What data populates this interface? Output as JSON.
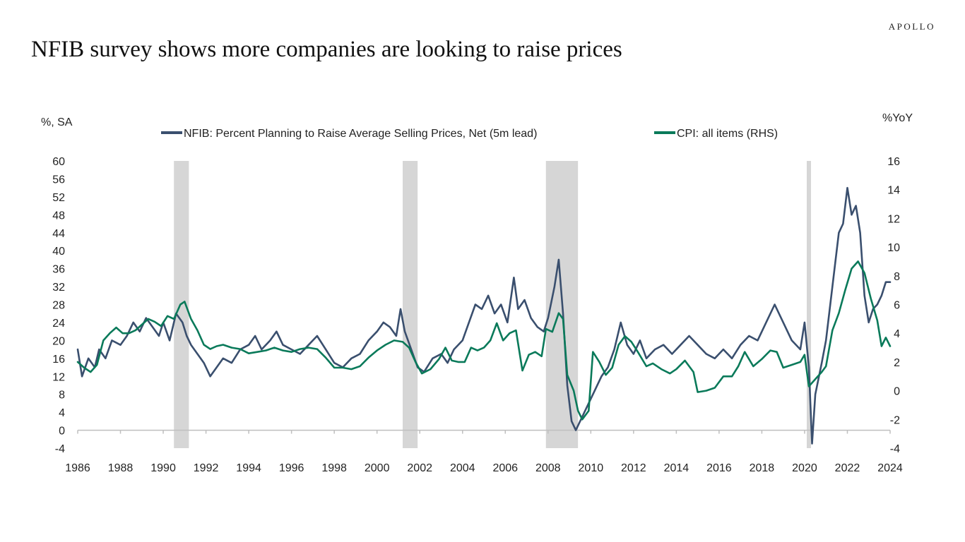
{
  "header": {
    "brand": "APOLLO",
    "title": "NFIB survey shows more companies are looking to raise prices"
  },
  "colors": {
    "nfib": "#3a4f6e",
    "cpi": "#0a7a5a",
    "recession": "#d6d6d6",
    "axis": "#bfbfbf"
  },
  "chart_data": {
    "type": "line",
    "title": "NFIB survey shows more companies are looking to raise prices",
    "y_left_label": "%, SA",
    "y_right_label": "%YoY",
    "ylim_left": [
      -4,
      60
    ],
    "ylim_right": [
      -4,
      16
    ],
    "xlim": [
      1986,
      2024
    ],
    "x_ticks": [
      "1986",
      "1988",
      "1990",
      "1992",
      "1994",
      "1996",
      "1998",
      "2000",
      "2002",
      "2004",
      "2006",
      "2008",
      "2010",
      "2012",
      "2014",
      "2016",
      "2018",
      "2020",
      "2022",
      "2024"
    ],
    "y_left_ticks": [
      "60",
      "56",
      "52",
      "48",
      "44",
      "40",
      "36",
      "32",
      "28",
      "24",
      "20",
      "16",
      "12",
      "8",
      "4",
      "0",
      "-4"
    ],
    "y_right_ticks": [
      "16",
      "14",
      "12",
      "10",
      "8",
      "6",
      "4",
      "2",
      "0",
      "-2",
      "-4"
    ],
    "legend": "top",
    "recessions": [
      [
        1990.5,
        1991.2
      ],
      [
        2001.2,
        2001.9
      ],
      [
        2007.9,
        2009.4
      ],
      [
        2020.1,
        2020.3
      ]
    ],
    "series": [
      {
        "name": "NFIB: Percent Planning to Raise Average Selling Prices, Net (5m lead)",
        "axis": "left",
        "points": [
          [
            1986.0,
            18
          ],
          [
            1986.2,
            12
          ],
          [
            1986.5,
            16
          ],
          [
            1986.8,
            14
          ],
          [
            1987.0,
            18
          ],
          [
            1987.3,
            16
          ],
          [
            1987.6,
            20
          ],
          [
            1988.0,
            19
          ],
          [
            1988.3,
            21
          ],
          [
            1988.6,
            24
          ],
          [
            1988.9,
            22
          ],
          [
            1989.2,
            25
          ],
          [
            1989.5,
            23
          ],
          [
            1989.8,
            21
          ],
          [
            1990.0,
            24
          ],
          [
            1990.3,
            20
          ],
          [
            1990.6,
            26
          ],
          [
            1990.9,
            24
          ],
          [
            1991.1,
            21
          ],
          [
            1991.3,
            19
          ],
          [
            1991.6,
            17
          ],
          [
            1991.9,
            15
          ],
          [
            1992.2,
            12
          ],
          [
            1992.5,
            14
          ],
          [
            1992.8,
            16
          ],
          [
            1993.2,
            15
          ],
          [
            1993.6,
            18
          ],
          [
            1994.0,
            19
          ],
          [
            1994.3,
            21
          ],
          [
            1994.6,
            18
          ],
          [
            1995.0,
            20
          ],
          [
            1995.3,
            22
          ],
          [
            1995.6,
            19
          ],
          [
            1996.0,
            18
          ],
          [
            1996.4,
            17
          ],
          [
            1996.8,
            19
          ],
          [
            1997.2,
            21
          ],
          [
            1997.6,
            18
          ],
          [
            1998.0,
            15
          ],
          [
            1998.4,
            14
          ],
          [
            1998.8,
            16
          ],
          [
            1999.2,
            17
          ],
          [
            1999.6,
            20
          ],
          [
            2000.0,
            22
          ],
          [
            2000.3,
            24
          ],
          [
            2000.6,
            23
          ],
          [
            2000.9,
            21
          ],
          [
            2001.1,
            27
          ],
          [
            2001.3,
            22
          ],
          [
            2001.6,
            18
          ],
          [
            2001.9,
            14
          ],
          [
            2002.2,
            13
          ],
          [
            2002.6,
            16
          ],
          [
            2003.0,
            17
          ],
          [
            2003.3,
            15
          ],
          [
            2003.6,
            18
          ],
          [
            2004.0,
            20
          ],
          [
            2004.3,
            24
          ],
          [
            2004.6,
            28
          ],
          [
            2004.9,
            27
          ],
          [
            2005.2,
            30
          ],
          [
            2005.5,
            26
          ],
          [
            2005.8,
            28
          ],
          [
            2006.1,
            24
          ],
          [
            2006.4,
            34
          ],
          [
            2006.6,
            27
          ],
          [
            2006.9,
            29
          ],
          [
            2007.2,
            25
          ],
          [
            2007.5,
            23
          ],
          [
            2007.8,
            22
          ],
          [
            2008.0,
            25
          ],
          [
            2008.3,
            32
          ],
          [
            2008.5,
            38
          ],
          [
            2008.7,
            26
          ],
          [
            2008.9,
            10
          ],
          [
            2009.1,
            2
          ],
          [
            2009.3,
            0
          ],
          [
            2009.6,
            3
          ],
          [
            2009.9,
            6
          ],
          [
            2010.2,
            9
          ],
          [
            2010.5,
            12
          ],
          [
            2010.8,
            14
          ],
          [
            2011.1,
            18
          ],
          [
            2011.4,
            24
          ],
          [
            2011.7,
            19
          ],
          [
            2012.0,
            17
          ],
          [
            2012.3,
            20
          ],
          [
            2012.6,
            16
          ],
          [
            2013.0,
            18
          ],
          [
            2013.4,
            19
          ],
          [
            2013.8,
            17
          ],
          [
            2014.2,
            19
          ],
          [
            2014.6,
            21
          ],
          [
            2015.0,
            19
          ],
          [
            2015.4,
            17
          ],
          [
            2015.8,
            16
          ],
          [
            2016.2,
            18
          ],
          [
            2016.6,
            16
          ],
          [
            2017.0,
            19
          ],
          [
            2017.4,
            21
          ],
          [
            2017.8,
            20
          ],
          [
            2018.2,
            24
          ],
          [
            2018.6,
            28
          ],
          [
            2019.0,
            24
          ],
          [
            2019.4,
            20
          ],
          [
            2019.8,
            18
          ],
          [
            2020.0,
            24
          ],
          [
            2020.2,
            14
          ],
          [
            2020.35,
            -3
          ],
          [
            2020.5,
            8
          ],
          [
            2020.8,
            15
          ],
          [
            2021.0,
            20
          ],
          [
            2021.3,
            32
          ],
          [
            2021.6,
            44
          ],
          [
            2021.8,
            46
          ],
          [
            2022.0,
            54
          ],
          [
            2022.2,
            48
          ],
          [
            2022.4,
            50
          ],
          [
            2022.6,
            44
          ],
          [
            2022.8,
            30
          ],
          [
            2023.0,
            24
          ],
          [
            2023.2,
            27
          ],
          [
            2023.4,
            28
          ],
          [
            2023.6,
            30
          ],
          [
            2023.8,
            33
          ],
          [
            2024.0,
            33
          ]
        ]
      },
      {
        "name": "CPI: all items (RHS)",
        "axis": "right",
        "points": [
          [
            1986.0,
            2.0
          ],
          [
            1986.3,
            1.6
          ],
          [
            1986.6,
            1.3
          ],
          [
            1986.9,
            1.8
          ],
          [
            1987.2,
            3.5
          ],
          [
            1987.5,
            4.0
          ],
          [
            1987.8,
            4.4
          ],
          [
            1988.1,
            4.0
          ],
          [
            1988.4,
            4.0
          ],
          [
            1988.7,
            4.2
          ],
          [
            1989.0,
            4.6
          ],
          [
            1989.3,
            5.0
          ],
          [
            1989.6,
            4.8
          ],
          [
            1989.9,
            4.5
          ],
          [
            1990.2,
            5.2
          ],
          [
            1990.5,
            5.0
          ],
          [
            1990.8,
            6.0
          ],
          [
            1991.0,
            6.2
          ],
          [
            1991.3,
            5.0
          ],
          [
            1991.6,
            4.2
          ],
          [
            1991.9,
            3.2
          ],
          [
            1992.2,
            2.9
          ],
          [
            1992.5,
            3.1
          ],
          [
            1992.8,
            3.2
          ],
          [
            1993.2,
            3.0
          ],
          [
            1993.6,
            2.9
          ],
          [
            1994.0,
            2.6
          ],
          [
            1994.4,
            2.7
          ],
          [
            1994.8,
            2.8
          ],
          [
            1995.2,
            3.0
          ],
          [
            1995.6,
            2.8
          ],
          [
            1996.0,
            2.7
          ],
          [
            1996.4,
            2.9
          ],
          [
            1996.8,
            3.0
          ],
          [
            1997.2,
            2.9
          ],
          [
            1997.6,
            2.3
          ],
          [
            1998.0,
            1.6
          ],
          [
            1998.4,
            1.6
          ],
          [
            1998.8,
            1.5
          ],
          [
            1999.2,
            1.7
          ],
          [
            1999.6,
            2.3
          ],
          [
            2000.0,
            2.8
          ],
          [
            2000.4,
            3.2
          ],
          [
            2000.8,
            3.5
          ],
          [
            2001.2,
            3.4
          ],
          [
            2001.5,
            3.0
          ],
          [
            2001.8,
            2.0
          ],
          [
            2002.1,
            1.2
          ],
          [
            2002.5,
            1.5
          ],
          [
            2002.9,
            2.2
          ],
          [
            2003.2,
            3.0
          ],
          [
            2003.5,
            2.1
          ],
          [
            2003.8,
            2.0
          ],
          [
            2004.1,
            2.0
          ],
          [
            2004.4,
            3.0
          ],
          [
            2004.7,
            2.8
          ],
          [
            2005.0,
            3.0
          ],
          [
            2005.3,
            3.5
          ],
          [
            2005.6,
            4.7
          ],
          [
            2005.9,
            3.5
          ],
          [
            2006.2,
            4.0
          ],
          [
            2006.5,
            4.2
          ],
          [
            2006.8,
            1.4
          ],
          [
            2007.1,
            2.5
          ],
          [
            2007.4,
            2.7
          ],
          [
            2007.7,
            2.4
          ],
          [
            2007.9,
            4.3
          ],
          [
            2008.2,
            4.1
          ],
          [
            2008.5,
            5.4
          ],
          [
            2008.7,
            5.0
          ],
          [
            2008.9,
            1.1
          ],
          [
            2009.2,
            0.0
          ],
          [
            2009.4,
            -1.4
          ],
          [
            2009.6,
            -2.0
          ],
          [
            2009.9,
            -1.4
          ],
          [
            2010.1,
            2.7
          ],
          [
            2010.4,
            2.0
          ],
          [
            2010.7,
            1.1
          ],
          [
            2011.0,
            1.6
          ],
          [
            2011.3,
            3.2
          ],
          [
            2011.6,
            3.8
          ],
          [
            2011.9,
            3.4
          ],
          [
            2012.2,
            2.7
          ],
          [
            2012.6,
            1.7
          ],
          [
            2012.9,
            1.9
          ],
          [
            2013.3,
            1.5
          ],
          [
            2013.7,
            1.2
          ],
          [
            2014.0,
            1.5
          ],
          [
            2014.4,
            2.1
          ],
          [
            2014.8,
            1.3
          ],
          [
            2015.0,
            -0.1
          ],
          [
            2015.4,
            0.0
          ],
          [
            2015.8,
            0.2
          ],
          [
            2016.2,
            1.0
          ],
          [
            2016.6,
            1.0
          ],
          [
            2016.9,
            1.7
          ],
          [
            2017.2,
            2.7
          ],
          [
            2017.6,
            1.7
          ],
          [
            2018.0,
            2.2
          ],
          [
            2018.4,
            2.8
          ],
          [
            2018.7,
            2.7
          ],
          [
            2019.0,
            1.6
          ],
          [
            2019.4,
            1.8
          ],
          [
            2019.8,
            2.0
          ],
          [
            2020.0,
            2.5
          ],
          [
            2020.2,
            0.3
          ],
          [
            2020.5,
            0.8
          ],
          [
            2020.8,
            1.3
          ],
          [
            2021.0,
            1.7
          ],
          [
            2021.3,
            4.2
          ],
          [
            2021.6,
            5.4
          ],
          [
            2021.9,
            7.0
          ],
          [
            2022.2,
            8.5
          ],
          [
            2022.5,
            9.0
          ],
          [
            2022.8,
            8.2
          ],
          [
            2023.1,
            6.4
          ],
          [
            2023.4,
            4.9
          ],
          [
            2023.6,
            3.1
          ],
          [
            2023.8,
            3.7
          ],
          [
            2024.0,
            3.1
          ]
        ]
      }
    ]
  }
}
